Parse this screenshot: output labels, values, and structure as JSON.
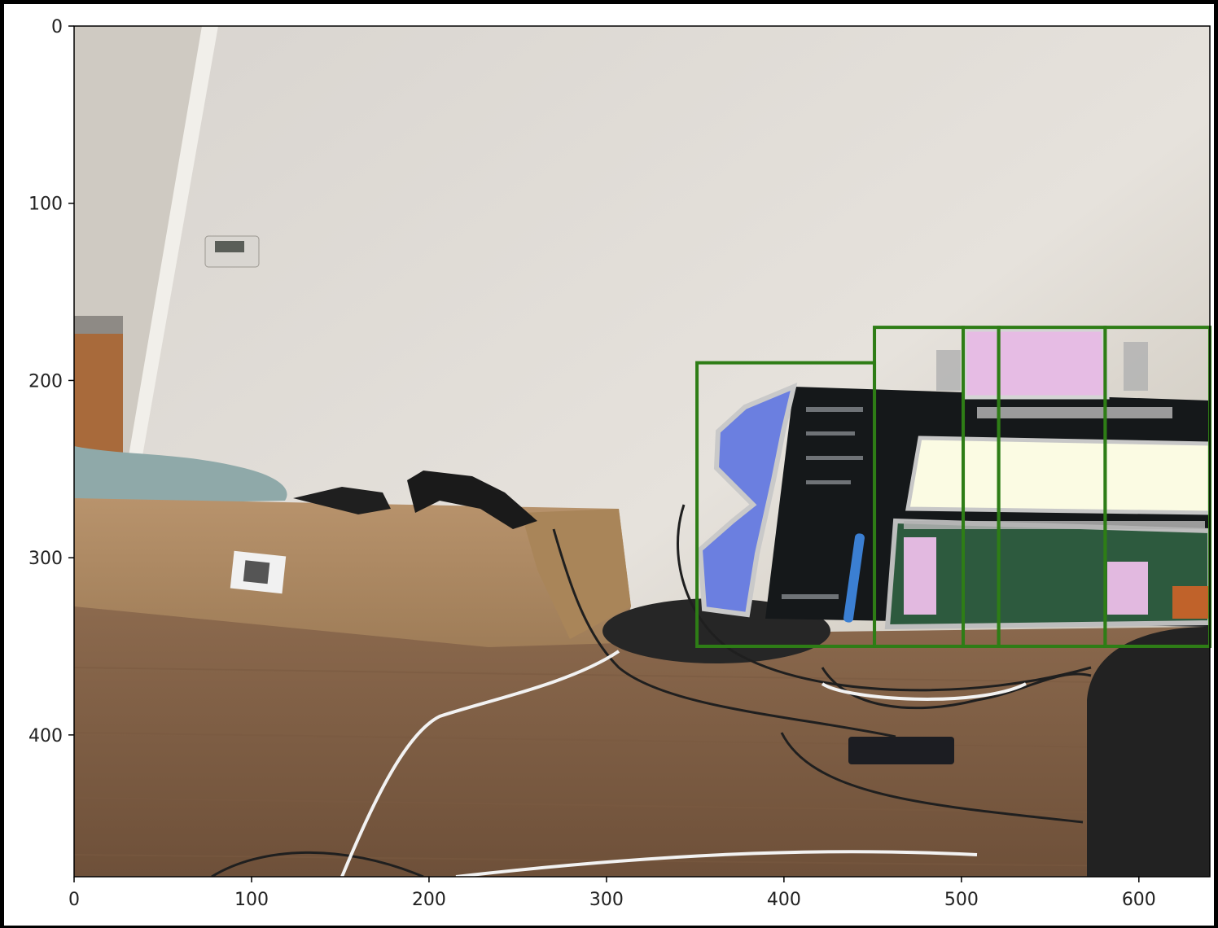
{
  "plot": {
    "x_ticks": [
      "0",
      "100",
      "200",
      "300",
      "400",
      "500",
      "600"
    ],
    "y_ticks": [
      "0",
      "100",
      "200",
      "300",
      "400"
    ],
    "xlim": [
      0,
      640
    ],
    "ylim": [
      480,
      0
    ],
    "y_axis_inverted": true
  },
  "chart_data": {
    "type": "image-with-annotations",
    "title": "",
    "xlabel": "",
    "ylabel": "",
    "x_ticks": [
      0,
      100,
      200,
      300,
      400,
      500,
      600
    ],
    "y_ticks": [
      0,
      100,
      200,
      300,
      400
    ],
    "xlim": [
      0,
      640
    ],
    "ylim": [
      480,
      0
    ],
    "boxes": [
      {
        "x0": 351,
        "y0": 190,
        "x1": 451,
        "y1": 350,
        "color": "#2e7d16"
      },
      {
        "x0": 451,
        "y0": 170,
        "x1": 501,
        "y1": 350,
        "color": "#2e7d16"
      },
      {
        "x0": 501,
        "y0": 170,
        "x1": 521,
        "y1": 350,
        "color": "#2e7d16"
      },
      {
        "x0": 521,
        "y0": 170,
        "x1": 581,
        "y1": 350,
        "color": "#2e7d16"
      },
      {
        "x0": 581,
        "y0": 170,
        "x1": 640,
        "y1": 350,
        "color": "#2e7d16"
      }
    ],
    "masks": [
      {
        "color": "#6b7fe0"
      },
      {
        "color": "#e6bce4"
      },
      {
        "color": "#fbfbe3"
      },
      {
        "color": "#2d5a3e"
      }
    ]
  }
}
